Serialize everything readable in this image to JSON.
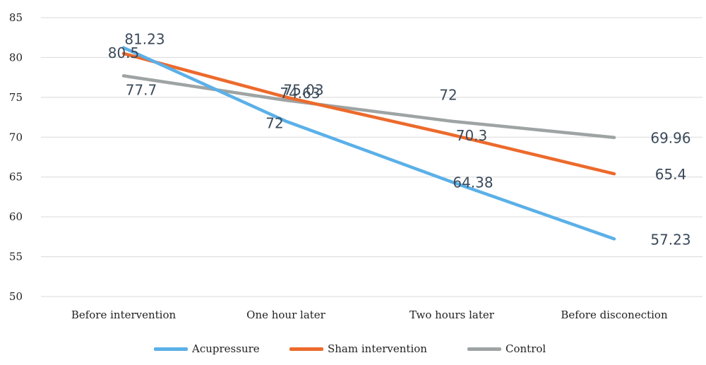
{
  "chart_data": {
    "type": "line",
    "categories": [
      "Before intervention",
      "One hour later",
      "Two hours later",
      "Before disconection"
    ],
    "series": [
      {
        "name": "Acupressure",
        "values": [
          81.23,
          72,
          64.38,
          57.23
        ],
        "color": "#5bb0e8"
      },
      {
        "name": "Sham intervention",
        "values": [
          80.5,
          75.03,
          70.3,
          65.4
        ],
        "color": "#ec6a2c"
      },
      {
        "name": "Control",
        "values": [
          77.7,
          74.63,
          72,
          69.96
        ],
        "color": "#9ea3a3"
      }
    ],
    "yticks": [
      50,
      55,
      60,
      65,
      70,
      75,
      80,
      85
    ],
    "ylim": [
      50,
      85
    ],
    "grid": true,
    "legend_position": "bottom"
  }
}
